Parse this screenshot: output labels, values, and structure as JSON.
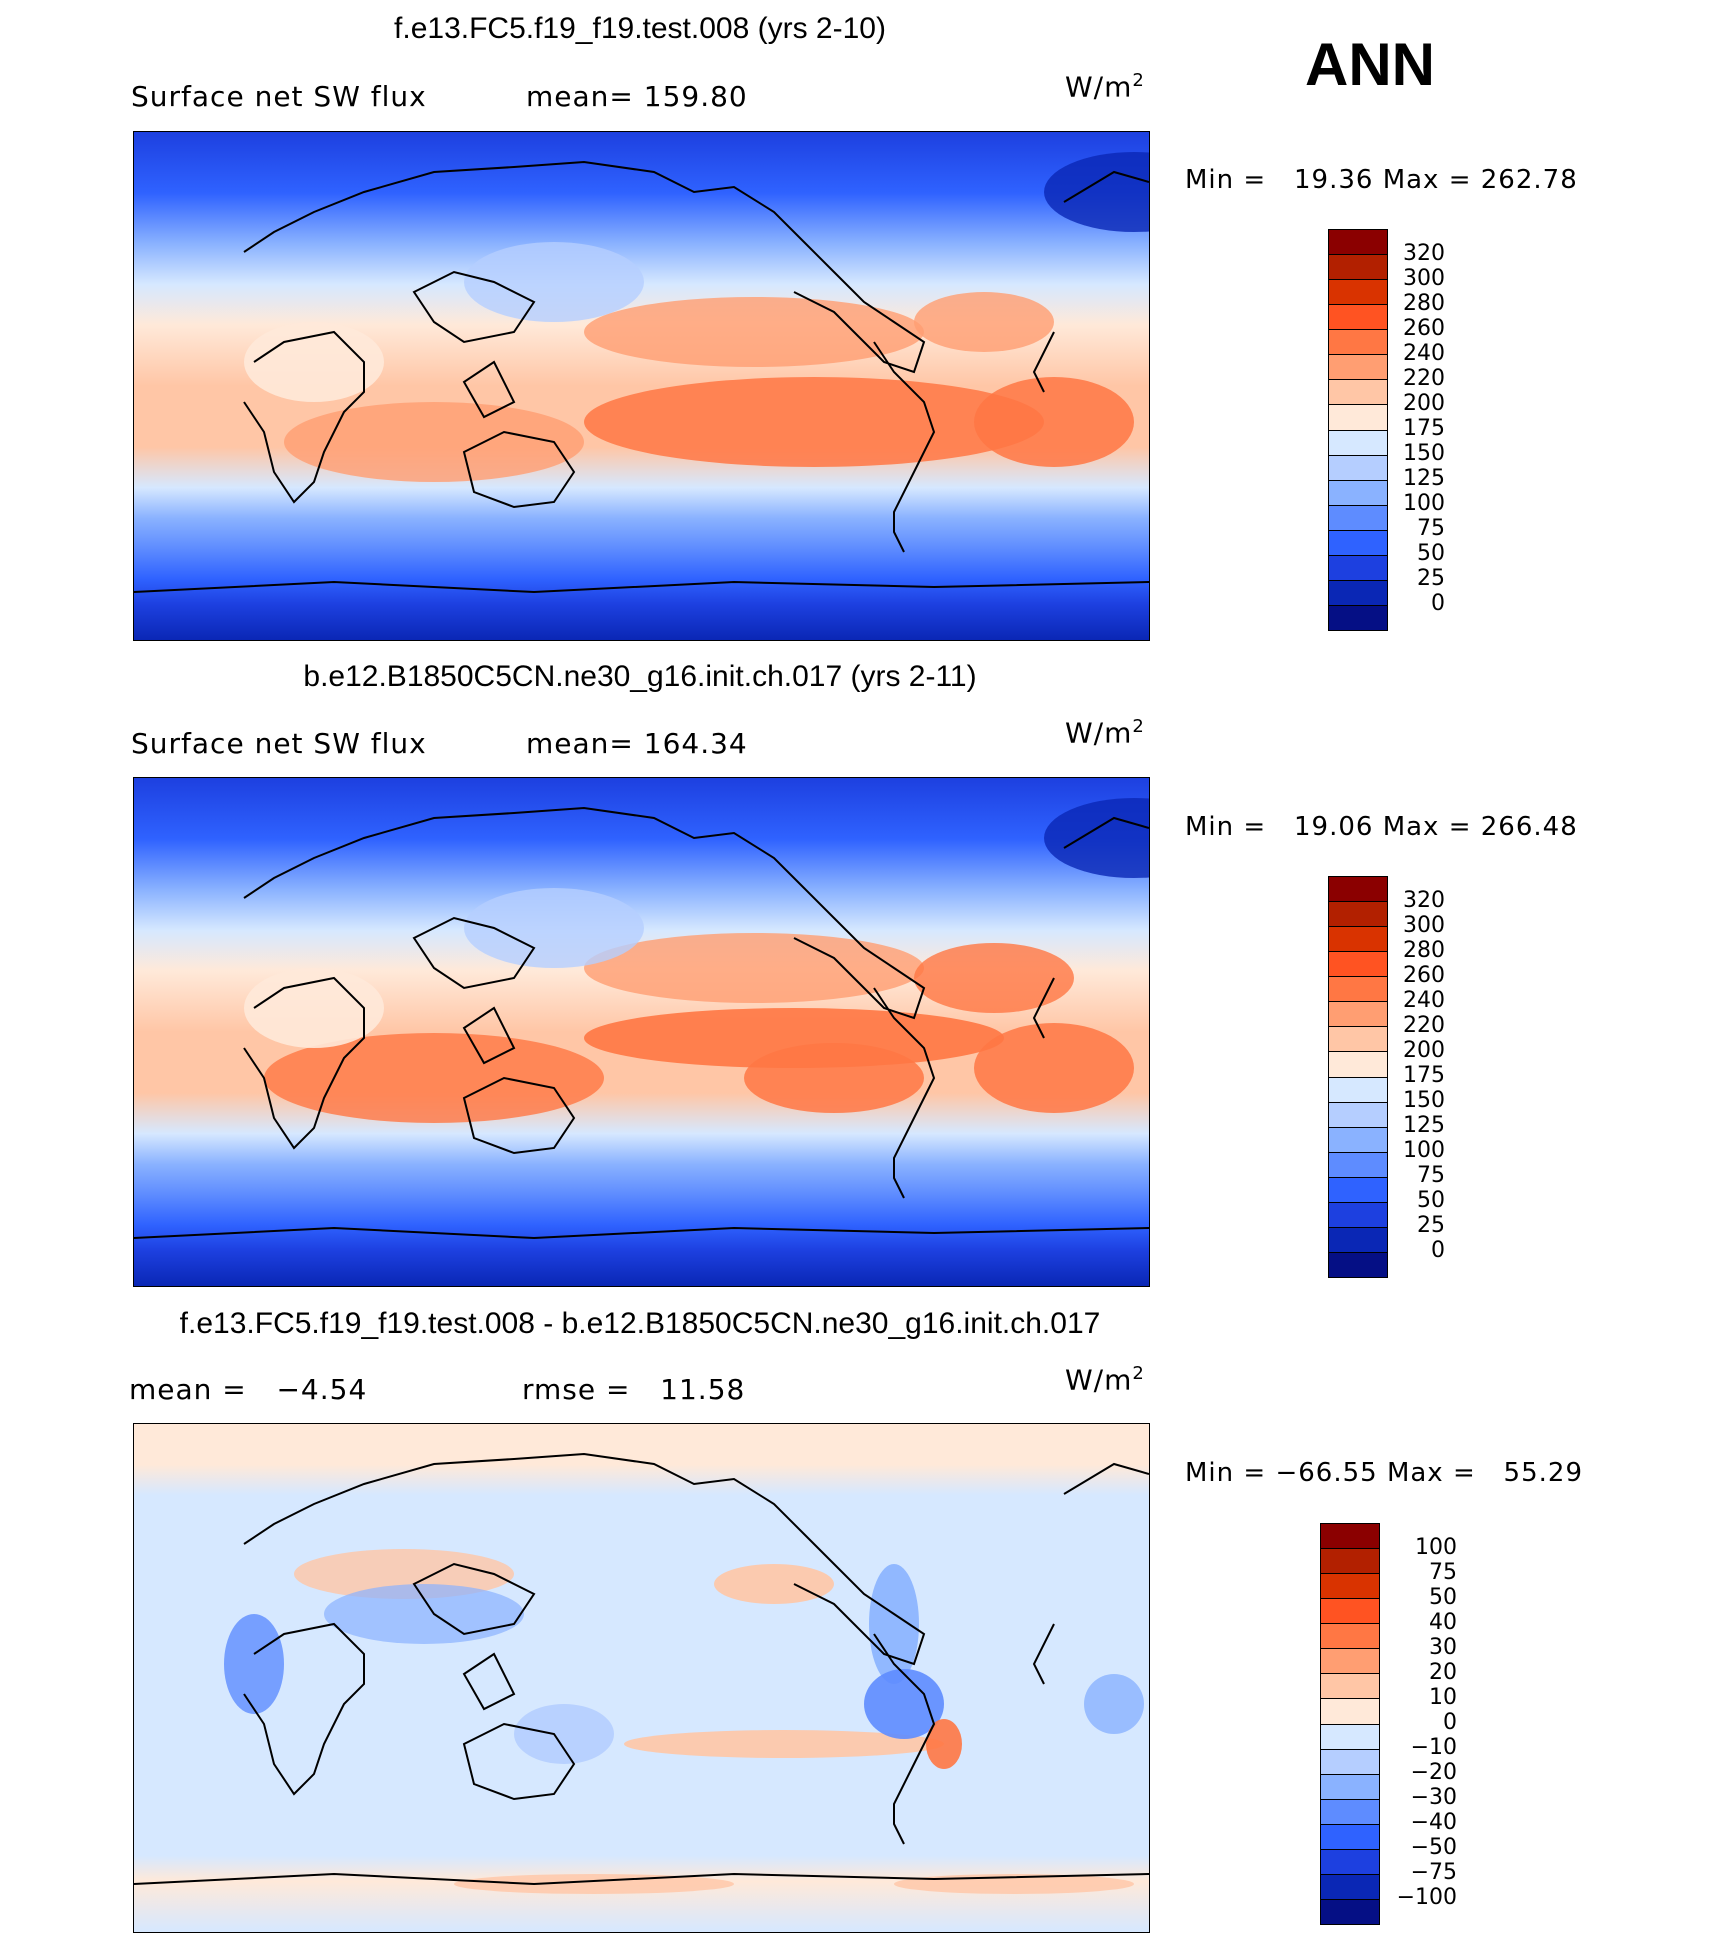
{
  "season": "ANN",
  "panels": [
    {
      "title": "f.e13.FC5.f19_f19.test.008 (yrs 2-10)",
      "left_label": "Surface net SW flux",
      "mid_label": "mean= 159.80",
      "units_base": "W/m",
      "units_exp": "2",
      "min_label": "Min =",
      "min_value": "19.36",
      "max_label": "Max =",
      "max_value": "262.78",
      "colorbar_labels": [
        "320",
        "300",
        "280",
        "260",
        "240",
        "220",
        "200",
        "175",
        "150",
        "125",
        "100",
        "75",
        "50",
        "25",
        "0"
      ],
      "colorbar_colors": [
        "#8B0000",
        "#B22000",
        "#D93300",
        "#FF5322",
        "#FF7744",
        "#FF9E72",
        "#FFC6A6",
        "#FFE9D9",
        "#D6E8FF",
        "#B5CEFF",
        "#8AB2FF",
        "#5E8CFF",
        "#2F62FF",
        "#1D40E0",
        "#0A27B5",
        "#050F85"
      ]
    },
    {
      "title": "b.e12.B1850C5CN.ne30_g16.init.ch.017 (yrs 2-11)",
      "left_label": "Surface net SW flux",
      "mid_label": "mean= 164.34",
      "units_base": "W/m",
      "units_exp": "2",
      "min_label": "Min =",
      "min_value": "19.06",
      "max_label": "Max =",
      "max_value": "266.48",
      "colorbar_labels": [
        "320",
        "300",
        "280",
        "260",
        "240",
        "220",
        "200",
        "175",
        "150",
        "125",
        "100",
        "75",
        "50",
        "25",
        "0"
      ],
      "colorbar_colors": [
        "#8B0000",
        "#B22000",
        "#D93300",
        "#FF5322",
        "#FF7744",
        "#FF9E72",
        "#FFC6A6",
        "#FFE9D9",
        "#D6E8FF",
        "#B5CEFF",
        "#8AB2FF",
        "#5E8CFF",
        "#2F62FF",
        "#1D40E0",
        "#0A27B5",
        "#050F85"
      ]
    },
    {
      "title": "f.e13.FC5.f19_f19.test.008 - b.e12.B1850C5CN.ne30_g16.init.ch.017",
      "left_label": "mean =   −4.54",
      "mid_label": "rmse =   11.58",
      "units_base": "W/m",
      "units_exp": "2",
      "min_label": "Min =",
      "min_value": "−66.55",
      "max_label": "Max =",
      "max_value": "55.29",
      "colorbar_labels": [
        "100",
        "75",
        "50",
        "40",
        "30",
        "20",
        "10",
        "0",
        "−10",
        "−20",
        "−30",
        "−40",
        "−50",
        "−75",
        "−100"
      ],
      "colorbar_colors": [
        "#8B0000",
        "#B22000",
        "#D93300",
        "#FF5322",
        "#FF7744",
        "#FF9E72",
        "#FFC6A6",
        "#FFE9D9",
        "#D6E8FF",
        "#B5CEFF",
        "#8AB2FF",
        "#5E8CFF",
        "#2F62FF",
        "#1D40E0",
        "#0A27B5",
        "#050F85"
      ]
    }
  ]
}
